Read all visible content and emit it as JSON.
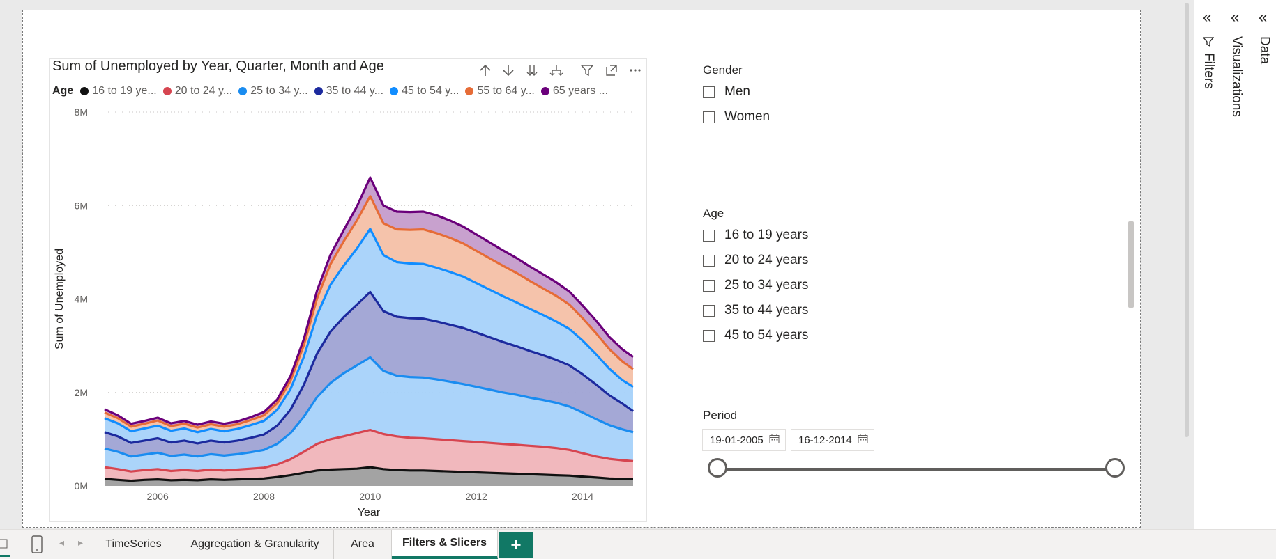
{
  "chart": {
    "title": "Sum of Unemployed by Year, Quarter, Month and Age",
    "legend_title": "Age",
    "legend": [
      {
        "label": "16 to 19 ye...",
        "color": "#111111"
      },
      {
        "label": "20 to 24 y...",
        "color": "#d64550"
      },
      {
        "label": "25 to 34 y...",
        "color": "#1a8cf0"
      },
      {
        "label": "35 to 44 y...",
        "color": "#1c2a9e"
      },
      {
        "label": "45 to 54 y...",
        "color": "#118dff"
      },
      {
        "label": "55 to 64 y...",
        "color": "#e66c37"
      },
      {
        "label": "65 years ...",
        "color": "#6b007b"
      }
    ],
    "ylabel": "Sum of Unemployed",
    "xlabel": "Year",
    "yticks": [
      "0M",
      "2M",
      "4M",
      "6M",
      "8M"
    ],
    "xticks": [
      "2006",
      "2008",
      "2010",
      "2012",
      "2014"
    ]
  },
  "chart_data": {
    "type": "area",
    "title": "Sum of Unemployed by Year, Quarter, Month and Age",
    "xlabel": "Year",
    "ylabel": "Sum of Unemployed",
    "stacked": true,
    "ylim": [
      0,
      8000000
    ],
    "xlim": [
      2005.0,
      2014.95
    ],
    "grid": true,
    "legend_position": "top-left",
    "x": [
      2005.0,
      2005.25,
      2005.5,
      2005.75,
      2006.0,
      2006.25,
      2006.5,
      2006.75,
      2007.0,
      2007.25,
      2007.5,
      2007.75,
      2008.0,
      2008.25,
      2008.5,
      2008.75,
      2009.0,
      2009.25,
      2009.5,
      2009.75,
      2010.0,
      2010.25,
      2010.5,
      2010.75,
      2011.0,
      2011.25,
      2011.5,
      2011.75,
      2012.0,
      2012.25,
      2012.5,
      2012.75,
      2013.0,
      2013.25,
      2013.5,
      2013.75,
      2014.0,
      2014.25,
      2014.5,
      2014.75,
      2014.95
    ],
    "series": [
      {
        "name": "16 to 19 ye...",
        "color": "#111111",
        "values": [
          0.15,
          0.13,
          0.11,
          0.13,
          0.14,
          0.12,
          0.13,
          0.12,
          0.14,
          0.13,
          0.14,
          0.15,
          0.16,
          0.19,
          0.23,
          0.28,
          0.33,
          0.35,
          0.36,
          0.37,
          0.4,
          0.36,
          0.34,
          0.33,
          0.33,
          0.32,
          0.31,
          0.3,
          0.29,
          0.28,
          0.27,
          0.26,
          0.25,
          0.24,
          0.23,
          0.22,
          0.2,
          0.18,
          0.16,
          0.15,
          0.15
        ]
      },
      {
        "name": "20 to 24 y...",
        "color": "#d64550",
        "values": [
          0.25,
          0.23,
          0.2,
          0.21,
          0.22,
          0.2,
          0.21,
          0.2,
          0.21,
          0.2,
          0.21,
          0.22,
          0.23,
          0.27,
          0.34,
          0.45,
          0.57,
          0.65,
          0.7,
          0.76,
          0.8,
          0.75,
          0.72,
          0.7,
          0.69,
          0.68,
          0.67,
          0.66,
          0.65,
          0.64,
          0.63,
          0.62,
          0.61,
          0.6,
          0.58,
          0.55,
          0.5,
          0.45,
          0.42,
          0.4,
          0.38
        ]
      },
      {
        "name": "25 to 34 y...",
        "color": "#1a8cf0",
        "values": [
          0.4,
          0.37,
          0.32,
          0.33,
          0.35,
          0.32,
          0.33,
          0.31,
          0.33,
          0.32,
          0.33,
          0.35,
          0.38,
          0.44,
          0.56,
          0.75,
          1.0,
          1.2,
          1.35,
          1.45,
          1.55,
          1.35,
          1.3,
          1.3,
          1.3,
          1.28,
          1.25,
          1.22,
          1.18,
          1.14,
          1.1,
          1.07,
          1.03,
          1.0,
          0.97,
          0.93,
          0.87,
          0.8,
          0.72,
          0.66,
          0.62
        ]
      },
      {
        "name": "35 to 44 y...",
        "color": "#1c2a9e",
        "values": [
          0.35,
          0.33,
          0.29,
          0.3,
          0.31,
          0.29,
          0.3,
          0.28,
          0.29,
          0.28,
          0.29,
          0.31,
          0.33,
          0.39,
          0.5,
          0.68,
          0.93,
          1.1,
          1.2,
          1.3,
          1.4,
          1.28,
          1.26,
          1.26,
          1.26,
          1.24,
          1.22,
          1.2,
          1.16,
          1.12,
          1.08,
          1.04,
          1.0,
          0.96,
          0.92,
          0.88,
          0.82,
          0.74,
          0.64,
          0.55,
          0.45
        ]
      },
      {
        "name": "45 to 54 y...",
        "color": "#118dff",
        "values": [
          0.3,
          0.28,
          0.25,
          0.26,
          0.27,
          0.25,
          0.26,
          0.24,
          0.25,
          0.24,
          0.25,
          0.27,
          0.29,
          0.34,
          0.44,
          0.6,
          0.83,
          1.0,
          1.1,
          1.2,
          1.35,
          1.2,
          1.17,
          1.17,
          1.17,
          1.15,
          1.13,
          1.1,
          1.06,
          1.02,
          0.98,
          0.94,
          0.9,
          0.86,
          0.82,
          0.78,
          0.72,
          0.65,
          0.57,
          0.5,
          0.52
        ]
      },
      {
        "name": "55 to 64 y...",
        "color": "#e66c37",
        "values": [
          0.12,
          0.11,
          0.1,
          0.1,
          0.11,
          0.1,
          0.1,
          0.1,
          0.1,
          0.1,
          0.1,
          0.11,
          0.12,
          0.14,
          0.18,
          0.25,
          0.35,
          0.44,
          0.52,
          0.6,
          0.7,
          0.68,
          0.7,
          0.72,
          0.74,
          0.74,
          0.73,
          0.71,
          0.69,
          0.67,
          0.65,
          0.63,
          0.6,
          0.57,
          0.55,
          0.52,
          0.48,
          0.45,
          0.42,
          0.4,
          0.38
        ]
      },
      {
        "name": "65 years ...",
        "color": "#6b007b",
        "values": [
          0.07,
          0.06,
          0.06,
          0.06,
          0.06,
          0.06,
          0.06,
          0.06,
          0.06,
          0.06,
          0.06,
          0.06,
          0.07,
          0.08,
          0.1,
          0.13,
          0.17,
          0.2,
          0.24,
          0.3,
          0.4,
          0.38,
          0.38,
          0.38,
          0.38,
          0.38,
          0.37,
          0.36,
          0.35,
          0.34,
          0.33,
          0.32,
          0.31,
          0.3,
          0.29,
          0.28,
          0.27,
          0.27,
          0.26,
          0.26,
          0.26
        ]
      }
    ],
    "value_unit_multiplier": 1000000
  },
  "gender_slicer": {
    "title": "Gender",
    "options": [
      "Men",
      "Women"
    ]
  },
  "age_slicer": {
    "title": "Age",
    "options": [
      "16 to 19 years",
      "20 to 24 years",
      "25 to 34 years",
      "35 to 44 years",
      "45 to 54 years"
    ]
  },
  "period_slicer": {
    "title": "Period",
    "start": "19-01-2005",
    "end": "16-12-2014"
  },
  "panes": {
    "filters": "Filters",
    "visualizations": "Visualizations",
    "data": "Data"
  },
  "tabs": [
    "TimeSeries",
    "Aggregation & Granularity",
    "Area",
    "Filters & Slicers"
  ],
  "active_tab": "Filters & Slicers",
  "add_tab_label": "+",
  "accent_color": "#117865"
}
